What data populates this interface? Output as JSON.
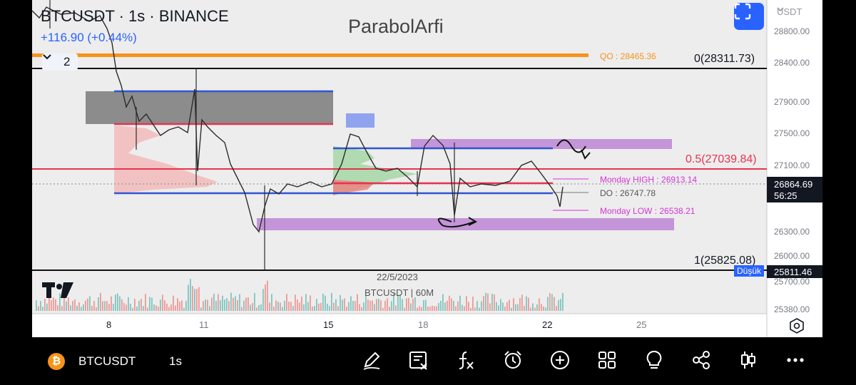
{
  "header": {
    "symbol_line": "BTCUSDT · 1s · BINANCE",
    "change": "+116.90 (+0.44%)",
    "collapse_count": "2",
    "watermark": "ParabolArfi",
    "currency": "USDT"
  },
  "levels": {
    "qo": "QO : 28465.36",
    "fib0": "0(28311.73)",
    "fib05": "0.5(27039.84)",
    "monday_high": "Monday HIGH : 26913.14",
    "do": "DO : 26747.78",
    "monday_low": "Monday LOW : 26538.21",
    "fib1": "1(25825.08)"
  },
  "price_axis": {
    "ticks": [
      "28800.00",
      "28400.00",
      "27900.00",
      "27500.00",
      "27100.00",
      "26300.00",
      "26000.00",
      "25700.00",
      "25380.00"
    ],
    "current_price": "26864.69",
    "countdown": "56:25",
    "low_label": "Düşük",
    "low_price": "25811.46"
  },
  "time_axis": {
    "ticks": [
      "8",
      "11",
      "15",
      "18",
      "22",
      "25"
    ]
  },
  "overlay": {
    "date_label": "22/5/2023",
    "indicator_label": "BTCUSDT | 60M"
  },
  "toolbar": {
    "symbol": "BTCUSDT",
    "interval": "1s",
    "logo_glyph": "₿",
    "tools": [
      "draw-pen",
      "note",
      "formula",
      "alert",
      "add",
      "layout",
      "idea",
      "share",
      "candles",
      "more"
    ]
  },
  "colors": {
    "orange": "#f7931a",
    "red": "#e8324f",
    "blue": "#2f55d4",
    "purple": "#c495d8",
    "magenta": "#d633d6",
    "up": "#26a69a",
    "down": "#ef5350"
  }
}
